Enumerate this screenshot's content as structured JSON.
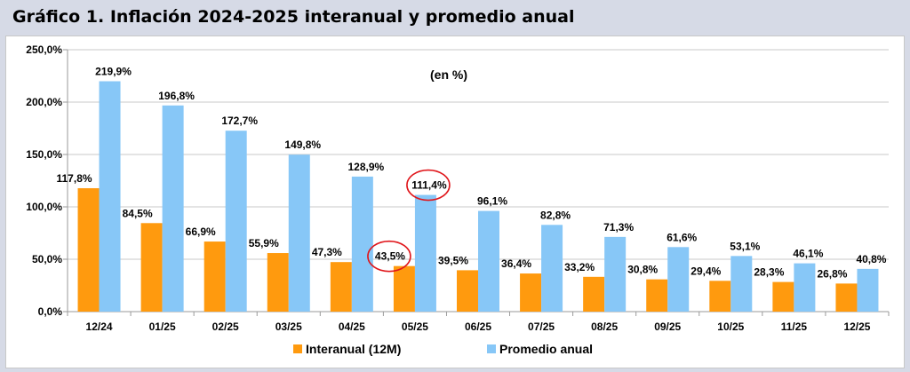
{
  "header": {
    "title": "Gráfico 1. Inflación 2024-2025 interanual y promedio anual"
  },
  "chart_data": {
    "type": "bar",
    "title": "Gráfico 1. Inflación 2024-2025 interanual y promedio anual",
    "annotation": "(en %)",
    "categories": [
      "12/24",
      "01/25",
      "02/25",
      "03/25",
      "04/25",
      "05/25",
      "06/25",
      "07/25",
      "08/25",
      "09/25",
      "10/25",
      "11/25",
      "12/25"
    ],
    "series": [
      {
        "name": "Interanual (12M)",
        "color": "#ff9a0e",
        "values": [
          117.8,
          84.5,
          66.9,
          55.9,
          47.3,
          43.5,
          39.5,
          36.4,
          33.2,
          30.8,
          29.4,
          28.3,
          26.8
        ],
        "labels": [
          "117,8%",
          "84,5%",
          "66,9%",
          "55,9%",
          "47,3%",
          "43,5%",
          "39,5%",
          "36,4%",
          "33,2%",
          "30,8%",
          "29,4%",
          "28,3%",
          "26,8%"
        ]
      },
      {
        "name": "Promedio anual",
        "color": "#87c7f7",
        "values": [
          219.9,
          196.8,
          172.7,
          149.8,
          128.9,
          111.4,
          96.1,
          82.8,
          71.3,
          61.6,
          53.1,
          46.1,
          40.8
        ],
        "labels": [
          "219,9%",
          "196,8%",
          "172,7%",
          "149,8%",
          "128,9%",
          "111,4%",
          "96,1%",
          "82,8%",
          "71,3%",
          "61,6%",
          "53,1%",
          "46,1%",
          "40,8%"
        ]
      }
    ],
    "yticks": [
      0,
      50,
      100,
      150,
      200,
      250
    ],
    "ytick_labels": [
      "0,0%",
      "50,0%",
      "100,0%",
      "150,0%",
      "200,0%",
      "250,0%"
    ],
    "ylim": [
      0,
      250
    ],
    "grid": true,
    "legend": "bottom",
    "highlighted": [
      {
        "series": 0,
        "category": "05/25"
      },
      {
        "series": 1,
        "category": "05/25"
      }
    ],
    "highlight_color": "#e0161b"
  }
}
